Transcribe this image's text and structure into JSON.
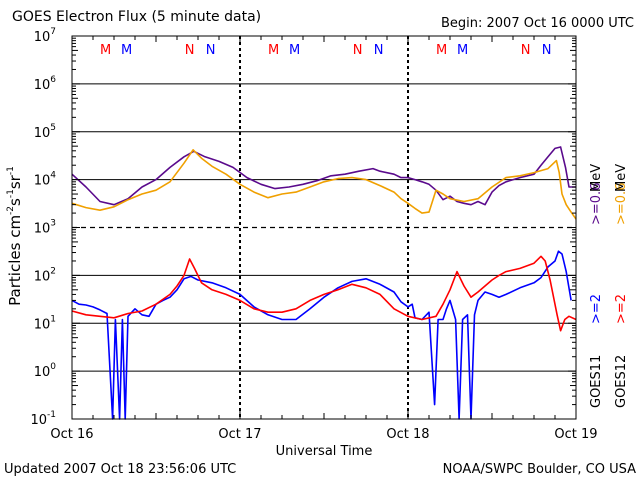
{
  "title": "GOES Electron Flux (5 minute data)",
  "begin_label": "Begin: 2007 Oct 16 0000 UTC",
  "updated_label": "Updated 2007 Oct 18 23:56:06 UTC",
  "credit_label": "NOAA/SWPC Boulder, CO USA",
  "colors": {
    "red": "#ff0000",
    "blue": "#0000ff",
    "purple": "#5a0a8c",
    "orange": "#f0a000"
  },
  "chart_data": {
    "type": "line",
    "title": "GOES Electron Flux (5 minute data)",
    "xlabel": "Universal Time",
    "ylabel": "Particles cm",
    "ylabel_unit_parts": [
      "Particles cm",
      "-2",
      "s",
      "-1",
      "sr",
      "-1"
    ],
    "y_scale": "log",
    "ylim": [
      0.1,
      10000000
    ],
    "y_ticks": [
      {
        "base": "10",
        "exp": "7",
        "value": 10000000
      },
      {
        "base": "10",
        "exp": "6",
        "value": 1000000
      },
      {
        "base": "10",
        "exp": "5",
        "value": 100000
      },
      {
        "base": "10",
        "exp": "4",
        "value": 10000
      },
      {
        "base": "10",
        "exp": "3",
        "value": 1000
      },
      {
        "base": "10",
        "exp": "2",
        "value": 100
      },
      {
        "base": "10",
        "exp": "1",
        "value": 10
      },
      {
        "base": "10",
        "exp": "0",
        "value": 1
      },
      {
        "base": "10",
        "exp": "-1",
        "value": 0.1
      }
    ],
    "xlim": [
      0,
      72
    ],
    "x_ticks": [
      {
        "label": "Oct 16",
        "hour": 0
      },
      {
        "label": "Oct 17",
        "hour": 24
      },
      {
        "label": "Oct 18",
        "hour": 48
      },
      {
        "label": "Oct 19",
        "hour": 72
      }
    ],
    "noon_midnight_markers": [
      {
        "letter": "M",
        "hour": 4.8,
        "color": "red"
      },
      {
        "letter": "M",
        "hour": 7.8,
        "color": "blue"
      },
      {
        "letter": "N",
        "hour": 16.8,
        "color": "red"
      },
      {
        "letter": "N",
        "hour": 19.8,
        "color": "blue"
      },
      {
        "letter": "M",
        "hour": 28.8,
        "color": "red"
      },
      {
        "letter": "M",
        "hour": 31.8,
        "color": "blue"
      },
      {
        "letter": "N",
        "hour": 40.8,
        "color": "red"
      },
      {
        "letter": "N",
        "hour": 43.8,
        "color": "blue"
      },
      {
        "letter": "M",
        "hour": 52.8,
        "color": "red"
      },
      {
        "letter": "M",
        "hour": 55.8,
        "color": "blue"
      },
      {
        "letter": "N",
        "hour": 64.8,
        "color": "red"
      },
      {
        "letter": "N",
        "hour": 67.8,
        "color": "blue"
      }
    ],
    "dashed_threshold": 1000,
    "right_labels": [
      {
        "text": "GOES11",
        "color": "black",
        "row": "left"
      },
      {
        "text": "GOES12",
        "color": "black",
        "row": "right"
      },
      {
        "text": ">=2",
        "color": "blue",
        "row": "left"
      },
      {
        "text": ">=2",
        "color": "red",
        "row": "right"
      },
      {
        "text": ">=0.6",
        "color": "purple",
        "row": "left"
      },
      {
        "text": ">=0.6",
        "color": "orange",
        "row": "right"
      },
      {
        "text": "MeV",
        "color": "black",
        "row": "left"
      },
      {
        "text": "MeV",
        "color": "black",
        "row": "right"
      }
    ],
    "series": [
      {
        "name": "GOES11 >=0.6 MeV",
        "color": "purple",
        "points": [
          [
            0,
            13000
          ],
          [
            2,
            7000
          ],
          [
            4,
            3500
          ],
          [
            6,
            3000
          ],
          [
            8,
            4000
          ],
          [
            10,
            7000
          ],
          [
            12,
            10000
          ],
          [
            14,
            18000
          ],
          [
            16,
            30000
          ],
          [
            17.4,
            39000
          ],
          [
            19,
            30000
          ],
          [
            21,
            24000
          ],
          [
            23,
            18000
          ],
          [
            25,
            11000
          ],
          [
            27,
            8000
          ],
          [
            29,
            6500
          ],
          [
            31,
            7000
          ],
          [
            33,
            8000
          ],
          [
            35,
            9500
          ],
          [
            37,
            12000
          ],
          [
            39,
            13000
          ],
          [
            41,
            15000
          ],
          [
            43,
            17000
          ],
          [
            44,
            15000
          ],
          [
            46,
            13000
          ],
          [
            47,
            11000
          ],
          [
            48,
            11000
          ],
          [
            49,
            10000
          ],
          [
            50,
            9000
          ],
          [
            51,
            8000
          ],
          [
            52,
            6000
          ],
          [
            53,
            3800
          ],
          [
            54,
            4500
          ],
          [
            55,
            3500
          ],
          [
            56,
            3200
          ],
          [
            57,
            3000
          ],
          [
            58,
            3500
          ],
          [
            59,
            3000
          ],
          [
            60,
            5500
          ],
          [
            61,
            7500
          ],
          [
            62,
            9000
          ],
          [
            64,
            11000
          ],
          [
            66,
            13000
          ],
          [
            67,
            20000
          ],
          [
            68,
            30000
          ],
          [
            69,
            45000
          ],
          [
            69.8,
            48000
          ],
          [
            70.5,
            18000
          ],
          [
            71,
            7000
          ],
          [
            72,
            7000
          ]
        ]
      },
      {
        "name": "GOES12 >=0.6 MeV",
        "color": "orange",
        "points": [
          [
            0,
            3200
          ],
          [
            2,
            2600
          ],
          [
            4,
            2300
          ],
          [
            6,
            2700
          ],
          [
            8,
            3800
          ],
          [
            10,
            5000
          ],
          [
            12,
            6000
          ],
          [
            14,
            9000
          ],
          [
            16,
            22000
          ],
          [
            17.3,
            42000
          ],
          [
            18.5,
            28000
          ],
          [
            20,
            19000
          ],
          [
            22,
            13000
          ],
          [
            24,
            8000
          ],
          [
            26,
            5500
          ],
          [
            28,
            4200
          ],
          [
            30,
            5000
          ],
          [
            32,
            5500
          ],
          [
            34,
            7000
          ],
          [
            36,
            9000
          ],
          [
            38,
            10500
          ],
          [
            40,
            11000
          ],
          [
            42,
            10000
          ],
          [
            44,
            7500
          ],
          [
            46,
            5500
          ],
          [
            47,
            4000
          ],
          [
            48,
            3200
          ],
          [
            49,
            2500
          ],
          [
            50,
            2000
          ],
          [
            51,
            2100
          ],
          [
            52,
            6000
          ],
          [
            53,
            5000
          ],
          [
            54,
            4000
          ],
          [
            56,
            3500
          ],
          [
            58,
            4000
          ],
          [
            60,
            7000
          ],
          [
            62,
            11000
          ],
          [
            64,
            12000
          ],
          [
            66,
            14000
          ],
          [
            68,
            17000
          ],
          [
            69.2,
            25000
          ],
          [
            69.6,
            14000
          ],
          [
            70,
            5000
          ],
          [
            70.6,
            3000
          ],
          [
            71.2,
            2200
          ],
          [
            72,
            1500
          ]
        ]
      },
      {
        "name": "GOES11 >=2 MeV",
        "color": "blue",
        "points": [
          [
            0,
            30
          ],
          [
            1,
            25
          ],
          [
            2,
            24
          ],
          [
            3,
            22
          ],
          [
            4,
            19
          ],
          [
            5,
            16
          ],
          [
            5.8,
            0.1
          ],
          [
            6.2,
            12
          ],
          [
            6.8,
            0.1
          ],
          [
            7.2,
            12
          ],
          [
            7.6,
            0.1
          ],
          [
            8,
            14
          ],
          [
            9,
            20
          ],
          [
            10,
            15
          ],
          [
            11,
            14
          ],
          [
            12,
            25
          ],
          [
            13,
            30
          ],
          [
            14,
            35
          ],
          [
            15,
            50
          ],
          [
            16,
            85
          ],
          [
            17,
            95
          ],
          [
            18,
            80
          ],
          [
            20,
            70
          ],
          [
            22,
            55
          ],
          [
            24,
            40
          ],
          [
            26,
            22
          ],
          [
            28,
            15
          ],
          [
            30,
            12
          ],
          [
            32,
            12
          ],
          [
            34,
            20
          ],
          [
            36,
            35
          ],
          [
            38,
            55
          ],
          [
            40,
            75
          ],
          [
            42,
            85
          ],
          [
            44,
            65
          ],
          [
            46,
            45
          ],
          [
            47,
            28
          ],
          [
            48,
            22
          ],
          [
            48.6,
            25
          ],
          [
            49,
            13
          ],
          [
            50,
            12
          ],
          [
            51,
            17
          ],
          [
            51.8,
            0.2
          ],
          [
            52.3,
            12
          ],
          [
            53,
            12
          ],
          [
            53.5,
            20
          ],
          [
            54,
            30
          ],
          [
            54.8,
            12
          ],
          [
            55.3,
            0.1
          ],
          [
            55.8,
            12
          ],
          [
            56.5,
            15
          ],
          [
            57,
            0.1
          ],
          [
            57.5,
            15
          ],
          [
            58,
            30
          ],
          [
            59,
            45
          ],
          [
            60,
            40
          ],
          [
            61,
            35
          ],
          [
            62,
            40
          ],
          [
            64,
            55
          ],
          [
            66,
            70
          ],
          [
            67,
            90
          ],
          [
            68,
            150
          ],
          [
            69,
            200
          ],
          [
            69.5,
            320
          ],
          [
            70,
            280
          ],
          [
            70.6,
            120
          ],
          [
            71.3,
            30
          ]
        ]
      },
      {
        "name": "GOES12 >=2 MeV",
        "color": "red",
        "points": [
          [
            0,
            18
          ],
          [
            2,
            15
          ],
          [
            4,
            14
          ],
          [
            6,
            13
          ],
          [
            8,
            16
          ],
          [
            10,
            18
          ],
          [
            12,
            25
          ],
          [
            14,
            40
          ],
          [
            15,
            60
          ],
          [
            16,
            100
          ],
          [
            16.8,
            220
          ],
          [
            17.5,
            140
          ],
          [
            18.5,
            70
          ],
          [
            20,
            50
          ],
          [
            22,
            40
          ],
          [
            24,
            30
          ],
          [
            26,
            20
          ],
          [
            28,
            17
          ],
          [
            30,
            17
          ],
          [
            32,
            20
          ],
          [
            34,
            30
          ],
          [
            36,
            40
          ],
          [
            38,
            50
          ],
          [
            40,
            65
          ],
          [
            42,
            55
          ],
          [
            44,
            40
          ],
          [
            46,
            20
          ],
          [
            48,
            14
          ],
          [
            50,
            12
          ],
          [
            52,
            14
          ],
          [
            53,
            25
          ],
          [
            54,
            50
          ],
          [
            55,
            120
          ],
          [
            56,
            60
          ],
          [
            57,
            35
          ],
          [
            58,
            45
          ],
          [
            59,
            60
          ],
          [
            60,
            80
          ],
          [
            61,
            100
          ],
          [
            62,
            120
          ],
          [
            64,
            140
          ],
          [
            66,
            180
          ],
          [
            67,
            250
          ],
          [
            67.6,
            200
          ],
          [
            68.3,
            80
          ],
          [
            69.3,
            15
          ],
          [
            69.8,
            7
          ],
          [
            70.4,
            12
          ],
          [
            71,
            14
          ],
          [
            72,
            12
          ]
        ]
      }
    ]
  }
}
